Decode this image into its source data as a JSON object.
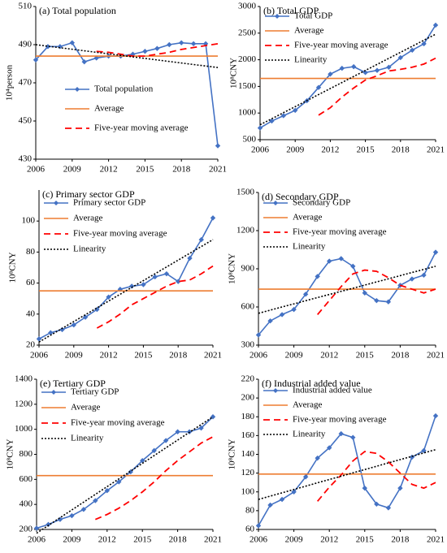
{
  "chart_data": [
    {
      "type": "line",
      "title": "(a) Total population",
      "ylabel": "10⁴person",
      "x": [
        2006,
        2007,
        2008,
        2009,
        2010,
        2011,
        2012,
        2013,
        2014,
        2015,
        2016,
        2017,
        2018,
        2019,
        2020,
        2021
      ],
      "xlim": [
        2006,
        2021
      ],
      "xticks": [
        2006,
        2009,
        2012,
        2015,
        2018,
        2021
      ],
      "ylim": [
        430,
        510
      ],
      "yticks": [
        430,
        450,
        470,
        490,
        510
      ],
      "legend": "center left",
      "series": [
        {
          "name": "Total population",
          "color": "#4472c4",
          "style": "solid",
          "marker": "diamond",
          "values": [
            482,
            489,
            489,
            491,
            481,
            483,
            484,
            484,
            485,
            486.5,
            488,
            490,
            491,
            490.5,
            490.5,
            437
          ]
        },
        {
          "name": "Average",
          "color": "#ed7d31",
          "style": "solid",
          "values": [
            484,
            484,
            484,
            484,
            484,
            484,
            484,
            484,
            484,
            484,
            484,
            484,
            484,
            484,
            484,
            484
          ]
        },
        {
          "name": "Five-year moving average",
          "color": "#ff0000",
          "style": "dashed",
          "values": [
            null,
            null,
            null,
            null,
            null,
            486.5,
            486,
            485,
            484,
            484,
            485,
            486,
            487.5,
            488.5,
            489.5,
            490.5
          ]
        },
        {
          "color": "#000000",
          "style": "dotted",
          "values": [
            490,
            489.2,
            488.4,
            487.6,
            486.8,
            486,
            485.2,
            484.4,
            483.6,
            482.8,
            482,
            481.2,
            480.4,
            479.6,
            478.8,
            478
          ]
        }
      ]
    },
    {
      "type": "line",
      "title": "(b) Total GDP",
      "ylabel": "10⁸CNY",
      "x": [
        2006,
        2007,
        2008,
        2009,
        2010,
        2011,
        2012,
        2013,
        2014,
        2015,
        2016,
        2017,
        2018,
        2019,
        2020,
        2021
      ],
      "xlim": [
        2006,
        2021
      ],
      "xticks": [
        2006,
        2009,
        2012,
        2015,
        2018,
        2021
      ],
      "ylim": [
        500,
        3000
      ],
      "yticks": [
        500,
        1000,
        1500,
        2000,
        2500,
        3000
      ],
      "legend": "upper left",
      "series": [
        {
          "name": "Total GDP",
          "color": "#4472c4",
          "style": "solid",
          "marker": "diamond",
          "values": [
            720,
            850,
            950,
            1050,
            1230,
            1480,
            1730,
            1840,
            1870,
            1760,
            1800,
            1860,
            2040,
            2180,
            2300,
            2650
          ]
        },
        {
          "name": "Average",
          "color": "#ed7d31",
          "style": "solid",
          "values": [
            1650,
            1650,
            1650,
            1650,
            1650,
            1650,
            1650,
            1650,
            1650,
            1650,
            1650,
            1650,
            1650,
            1650,
            1650,
            1650
          ]
        },
        {
          "name": "Five-year moving average",
          "color": "#ff0000",
          "style": "dashed",
          "values": [
            null,
            null,
            null,
            null,
            null,
            960,
            1100,
            1300,
            1470,
            1620,
            1700,
            1790,
            1820,
            1860,
            1920,
            2030
          ]
        },
        {
          "name": "Linearity",
          "color": "#000000",
          "style": "dotted",
          "values": [
            780,
            893,
            1007,
            1120,
            1233,
            1347,
            1460,
            1573,
            1687,
            1800,
            1913,
            2027,
            2140,
            2253,
            2367,
            2480
          ]
        }
      ]
    },
    {
      "type": "line",
      "title": "(c) Primary sector GDP",
      "ylabel": "10⁸CNY",
      "x": [
        2006,
        2007,
        2008,
        2009,
        2010,
        2011,
        2012,
        2013,
        2014,
        2015,
        2016,
        2017,
        2018,
        2019,
        2020,
        2021
      ],
      "xlim": [
        2006,
        2021
      ],
      "xticks": [
        2006,
        2009,
        2012,
        2015,
        2018,
        2021
      ],
      "ylim": [
        20,
        120
      ],
      "yticks": [
        20,
        40,
        60,
        80,
        100
      ],
      "legend": "upper left",
      "series": [
        {
          "name": "Primary sector GDP",
          "color": "#4472c4",
          "style": "solid",
          "marker": "diamond",
          "values": [
            24,
            28,
            30,
            33,
            38,
            43,
            51,
            56,
            58,
            59,
            64,
            66,
            61,
            76,
            88,
            102
          ]
        },
        {
          "name": "Average",
          "color": "#ed7d31",
          "style": "solid",
          "values": [
            55,
            55,
            55,
            55,
            55,
            55,
            55,
            55,
            55,
            55,
            55,
            55,
            55,
            55,
            55,
            55
          ]
        },
        {
          "name": "Five-year moving average",
          "color": "#ff0000",
          "style": "dashed",
          "values": [
            null,
            null,
            null,
            null,
            null,
            31,
            35,
            40,
            46,
            50,
            54,
            58,
            61,
            62,
            66,
            71
          ]
        },
        {
          "name": "Linearity",
          "color": "#000000",
          "style": "dotted",
          "values": [
            22,
            26.4,
            30.8,
            35.2,
            39.6,
            44,
            48.4,
            52.8,
            57.2,
            61.6,
            66,
            70.4,
            74.8,
            79.2,
            83.6,
            88
          ]
        }
      ]
    },
    {
      "type": "line",
      "title": "(d) Secondary GDP",
      "ylabel": "10⁸CNY",
      "x": [
        2006,
        2007,
        2008,
        2009,
        2010,
        2011,
        2012,
        2013,
        2014,
        2015,
        2016,
        2017,
        2018,
        2019,
        2020,
        2021
      ],
      "xlim": [
        2006,
        2021
      ],
      "xticks": [
        2006,
        2009,
        2012,
        2015,
        2018,
        2021
      ],
      "ylim": [
        300,
        1500
      ],
      "yticks": [
        300,
        600,
        900,
        1200,
        1500
      ],
      "legend": "upper left",
      "series": [
        {
          "name": "Secondary GDP",
          "color": "#4472c4",
          "style": "solid",
          "marker": "diamond",
          "values": [
            380,
            490,
            540,
            580,
            700,
            840,
            960,
            980,
            920,
            710,
            650,
            640,
            770,
            820,
            850,
            1030
          ]
        },
        {
          "name": "Average",
          "color": "#ed7d31",
          "style": "solid",
          "values": [
            740,
            740,
            740,
            740,
            740,
            740,
            740,
            740,
            740,
            740,
            740,
            740,
            740,
            740,
            740,
            740
          ]
        },
        {
          "name": "Five-year moving average",
          "color": "#ff0000",
          "style": "dashed",
          "values": [
            null,
            null,
            null,
            null,
            null,
            540,
            650,
            760,
            860,
            890,
            880,
            830,
            770,
            740,
            710,
            740
          ]
        },
        {
          "name": "Linearity",
          "color": "#000000",
          "style": "dotted",
          "values": [
            550,
            575,
            600,
            624,
            649,
            674,
            698,
            723,
            747,
            772,
            797,
            821,
            846,
            871,
            895,
            920
          ]
        }
      ]
    },
    {
      "type": "line",
      "title": "(e) Tertiary GDP",
      "ylabel": "10⁸CNY",
      "x": [
        2006,
        2007,
        2008,
        2009,
        2010,
        2011,
        2012,
        2013,
        2014,
        2015,
        2016,
        2017,
        2018,
        2019,
        2020,
        2021
      ],
      "xlim": [
        2006,
        2021
      ],
      "xticks": [
        2006,
        2009,
        2012,
        2015,
        2018,
        2021
      ],
      "ylim": [
        200,
        1400
      ],
      "yticks": [
        200,
        400,
        600,
        800,
        1000,
        1200,
        1400
      ],
      "legend": "upper left",
      "series": [
        {
          "name": "Tertiary GDP",
          "color": "#4472c4",
          "style": "solid",
          "marker": "diamond",
          "values": [
            210,
            240,
            280,
            310,
            360,
            430,
            510,
            580,
            660,
            750,
            830,
            910,
            980,
            980,
            1010,
            1100
          ]
        },
        {
          "name": "Average",
          "color": "#ed7d31",
          "style": "solid",
          "values": [
            630,
            630,
            630,
            630,
            630,
            630,
            630,
            630,
            630,
            630,
            630,
            630,
            630,
            630,
            630,
            630
          ]
        },
        {
          "name": "Five-year moving average",
          "color": "#ff0000",
          "style": "dashed",
          "values": [
            null,
            null,
            null,
            null,
            null,
            280,
            320,
            370,
            430,
            500,
            580,
            670,
            750,
            820,
            890,
            940
          ]
        },
        {
          "name": "Linearity",
          "color": "#000000",
          "style": "dotted",
          "values": [
            170,
            232,
            294,
            356,
            418,
            480,
            542,
            604,
            666,
            728,
            790,
            852,
            914,
            976,
            1038,
            1100
          ]
        }
      ]
    },
    {
      "type": "line",
      "title": "(f) Industrial added value",
      "ylabel": "10⁸CNY",
      "x": [
        2006,
        2007,
        2008,
        2009,
        2010,
        2011,
        2012,
        2013,
        2014,
        2015,
        2016,
        2017,
        2018,
        2019,
        2020,
        2021
      ],
      "xlim": [
        2006,
        2021
      ],
      "xticks": [
        2006,
        2009,
        2012,
        2015,
        2018,
        2021
      ],
      "ylim": [
        60,
        220
      ],
      "yticks": [
        60,
        80,
        100,
        120,
        140,
        160,
        180,
        200,
        220
      ],
      "legend": "upper left",
      "series": [
        {
          "name": "Industrial added value",
          "color": "#4472c4",
          "style": "solid",
          "marker": "diamond",
          "values": [
            64,
            86,
            92,
            100,
            116,
            136,
            147,
            162,
            158,
            104,
            87,
            83,
            104,
            137,
            144,
            181
          ]
        },
        {
          "name": "Average",
          "color": "#ed7d31",
          "style": "solid",
          "values": [
            119,
            119,
            119,
            119,
            119,
            119,
            119,
            119,
            119,
            119,
            119,
            119,
            119,
            119,
            119,
            119
          ]
        },
        {
          "name": "Five-year moving average",
          "color": "#ff0000",
          "style": "dashed",
          "values": [
            null,
            null,
            null,
            null,
            null,
            90,
            105,
            118,
            133,
            143,
            141,
            132,
            120,
            108,
            104,
            110
          ]
        },
        {
          "name": "Linearity",
          "color": "#000000",
          "style": "dotted",
          "values": [
            92,
            95.5,
            99,
            102.6,
            106.1,
            109.7,
            113.2,
            116.7,
            120.3,
            123.8,
            127.3,
            130.9,
            134.4,
            137.9,
            141.5,
            145
          ]
        }
      ]
    }
  ]
}
